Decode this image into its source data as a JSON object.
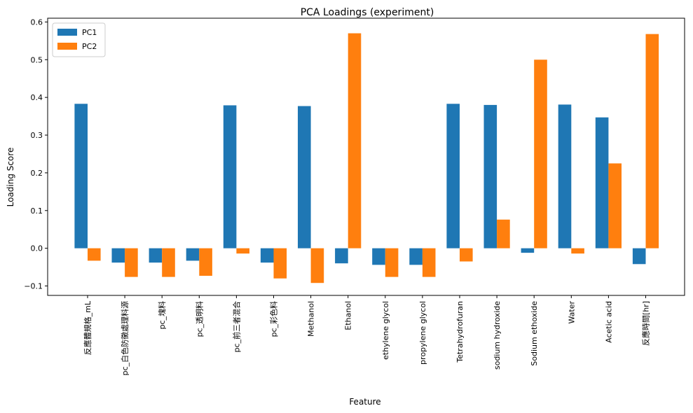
{
  "chart_data": {
    "type": "bar",
    "title": "PCA Loadings (experiment)",
    "xlabel": "Feature",
    "ylabel": "Loading Score",
    "ylim": [
      -0.125,
      0.61
    ],
    "yticks": [
      -0.1,
      0.0,
      0.1,
      0.2,
      0.3,
      0.4,
      0.5,
      0.6
    ],
    "ytick_labels": [
      "−0.1",
      "0.0",
      "0.1",
      "0.2",
      "0.3",
      "0.4",
      "0.5",
      "0.6"
    ],
    "grid": false,
    "legend_position": "top-left",
    "categories": [
      "反應體規格_mL",
      "pc_白色防黴處理料源",
      "pc_塊料",
      "pc_透明料",
      "pc_前三者混合",
      "pc_彩色料",
      "Methanol",
      "Ethanol",
      "ethylene glycol",
      "propylene glycol",
      "Tetrahydrofuran",
      "sodium hydroxide",
      "Sodium ethoxide",
      "Water",
      "Acetic acid",
      "反應時間[hr]"
    ],
    "series": [
      {
        "name": "PC1",
        "color": "#1f77b4",
        "values": [
          0.383,
          -0.038,
          -0.038,
          -0.033,
          0.379,
          -0.038,
          0.377,
          -0.04,
          -0.044,
          -0.044,
          0.383,
          0.38,
          -0.012,
          0.381,
          0.347,
          -0.042
        ]
      },
      {
        "name": "PC2",
        "color": "#ff7f0e",
        "values": [
          -0.033,
          -0.076,
          -0.076,
          -0.073,
          -0.014,
          -0.08,
          -0.092,
          0.57,
          -0.076,
          -0.076,
          -0.035,
          0.076,
          0.5,
          -0.014,
          0.225,
          0.568
        ]
      }
    ]
  }
}
